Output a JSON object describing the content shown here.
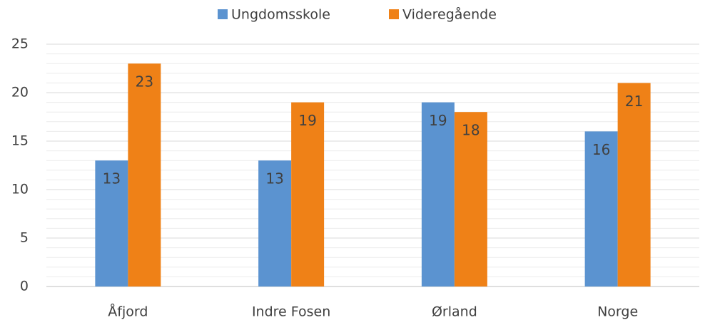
{
  "chart_data": {
    "type": "bar",
    "categories": [
      "Åfjord",
      "Indre Fosen",
      "Ørland",
      "Norge"
    ],
    "series": [
      {
        "name": "Ungdomsskole",
        "color": "#5b93d0",
        "values": [
          13,
          13,
          19,
          16
        ]
      },
      {
        "name": "Videregående",
        "color": "#ef8117",
        "values": [
          23,
          19,
          18,
          21
        ]
      }
    ],
    "ylim": [
      0,
      25
    ],
    "yticks": [
      0,
      5,
      10,
      15,
      20,
      25
    ],
    "grid": true,
    "minor_grid": true,
    "legend": "top",
    "data_labels": true
  }
}
